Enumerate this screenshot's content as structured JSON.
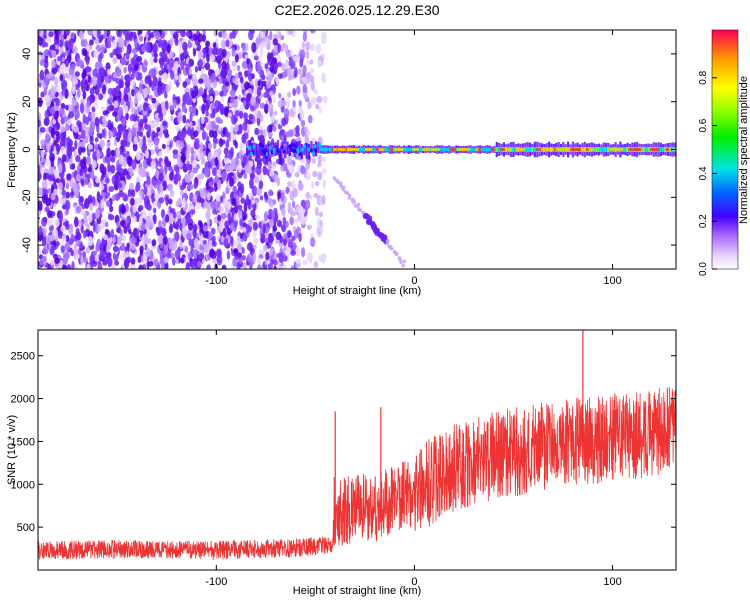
{
  "figure_title": "C2E2.2026.025.12.29.E30",
  "chart_data": [
    {
      "type": "heatmap",
      "xlabel": "Height of straight line (km)",
      "ylabel": "Frequency (Hz)",
      "xlim": [
        -190,
        132
      ],
      "ylim": [
        -50,
        50
      ],
      "xticks": [
        -100,
        0,
        100
      ],
      "yticks": [
        -40,
        -20,
        0,
        20,
        40
      ],
      "colorbar": {
        "label": "Normalized spectral amplitude",
        "range": [
          0,
          1
        ],
        "ticks": [
          0.0,
          0.2,
          0.4,
          0.6,
          0.8
        ]
      },
      "features": [
        {
          "name": "broadband noise region",
          "x_range": [
            -190,
            -50
          ],
          "freq_range": [
            -50,
            50
          ]
        },
        {
          "name": "carrier line",
          "x_range": [
            -85,
            132
          ],
          "freq_hz": 0
        },
        {
          "name": "descending trace",
          "x_range": [
            -40,
            -5
          ],
          "freq_range": [
            -48,
            -12
          ]
        }
      ]
    },
    {
      "type": "line",
      "xlabel": "Height of straight line (km)",
      "ylabel": "SNR (10 * v/v)",
      "xlim": [
        -190,
        132
      ],
      "ylim": [
        0,
        2800
      ],
      "xticks": [
        -100,
        0,
        100
      ],
      "yticks": [
        500,
        1000,
        1500,
        2000,
        2500
      ],
      "color": "#ee3333",
      "series": [
        {
          "name": "SNR",
          "x": [
            -190,
            -150,
            -100,
            -60,
            -41,
            -40.5,
            -30,
            -15,
            -10,
            0,
            20,
            40,
            60,
            80,
            100,
            120,
            132
          ],
          "values": [
            230,
            240,
            230,
            260,
            290,
            700,
            700,
            750,
            850,
            920,
            1180,
            1330,
            1420,
            1500,
            1540,
            1600,
            1640
          ]
        }
      ],
      "spikes": [
        {
          "x": -40,
          "value": 1850
        },
        {
          "x": -17,
          "value": 1900
        },
        {
          "x": 85,
          "value": 2800
        }
      ]
    }
  ]
}
